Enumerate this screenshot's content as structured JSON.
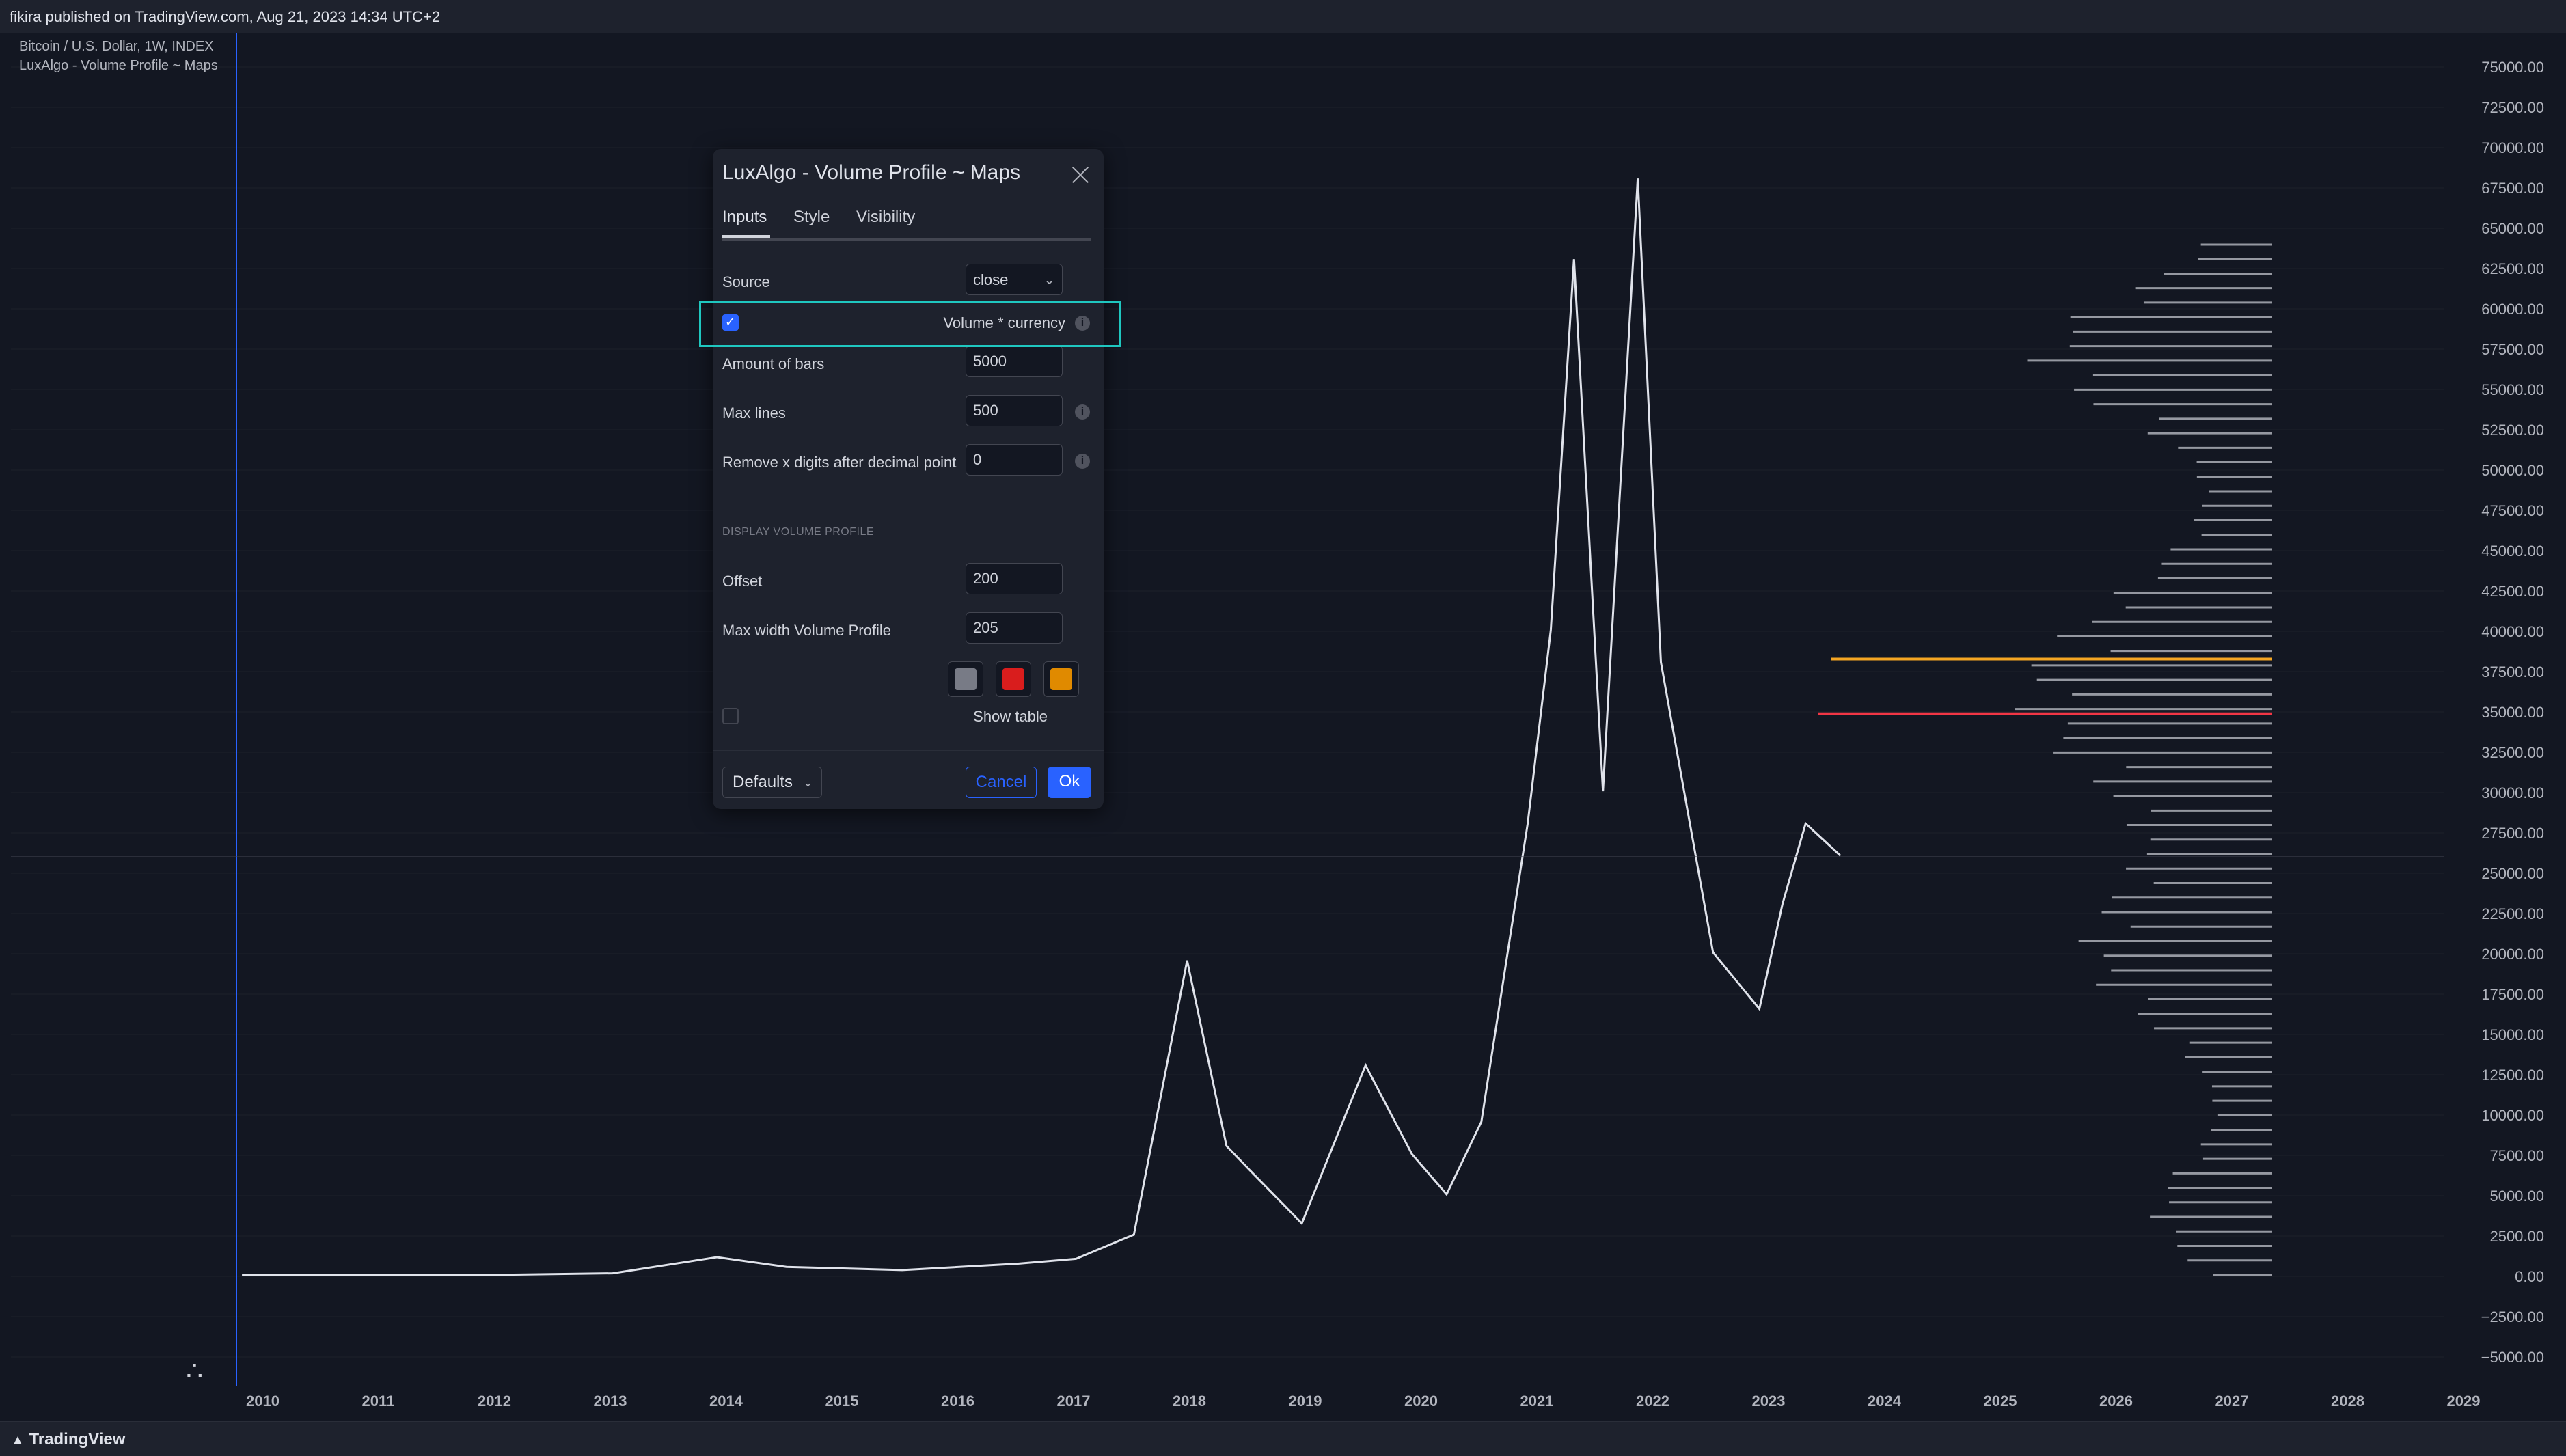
{
  "header": {
    "publish_info": "fikira published on TradingView.com, Aug 21, 2023 14:34 UTC+2"
  },
  "legend": {
    "symbol": "Bitcoin / U.S. Dollar, 1W, INDEX",
    "indicator": "LuxAlgo - Volume Profile ~ Maps"
  },
  "price_axis": [
    "75000.00",
    "72500.00",
    "70000.00",
    "67500.00",
    "65000.00",
    "62500.00",
    "60000.00",
    "57500.00",
    "55000.00",
    "52500.00",
    "50000.00",
    "47500.00",
    "45000.00",
    "42500.00",
    "40000.00",
    "37500.00",
    "35000.00",
    "32500.00",
    "30000.00",
    "27500.00",
    "25000.00",
    "22500.00",
    "20000.00",
    "17500.00",
    "15000.00",
    "12500.00",
    "10000.00",
    "7500.00",
    "5000.00",
    "2500.00",
    "0.00",
    "−2500.00",
    "−5000.00"
  ],
  "time_axis": [
    "2010",
    "2011",
    "2012",
    "2013",
    "2014",
    "2015",
    "2016",
    "2017",
    "2018",
    "2019",
    "2020",
    "2021",
    "2022",
    "2023",
    "2024",
    "2025",
    "2026",
    "2027",
    "2028",
    "2029"
  ],
  "colors": {
    "accent": "#2962ff",
    "highlight": "#1fc7c0",
    "poc_red": "#f23645",
    "orange_line": "#f5a623",
    "profile_gray": "#9598a1"
  },
  "dialog": {
    "title": "LuxAlgo - Volume Profile ~ Maps",
    "tabs": [
      {
        "label": "Inputs"
      },
      {
        "label": "Style"
      },
      {
        "label": "Visibility"
      }
    ],
    "source": {
      "label": "Source",
      "value": "close"
    },
    "volume_currency": {
      "label": "Volume * currency",
      "checked": true
    },
    "amount_of_bars": {
      "label": "Amount of bars",
      "value": "5000"
    },
    "max_lines": {
      "label": "Max lines",
      "value": "500"
    },
    "remove_digits": {
      "label": "Remove x digits after decimal point",
      "value": "0"
    },
    "section_display": "DISPLAY VOLUME PROFILE",
    "offset": {
      "label": "Offset",
      "value": "200"
    },
    "max_width": {
      "label": "Max width Volume Profile",
      "value": "205"
    },
    "swatches": [
      "#787b86",
      "#d91d1d",
      "#e08a00"
    ],
    "show_table": {
      "label": "Show table",
      "checked": false
    },
    "buttons": {
      "defaults": "Defaults",
      "cancel": "Cancel",
      "ok": "Ok"
    }
  },
  "footer": {
    "brand": "TradingView"
  },
  "chart_data": {
    "type": "line",
    "x": [
      2009.8,
      2011.0,
      2012.0,
      2013.0,
      2013.9,
      2014.5,
      2015.5,
      2016.5,
      2017.0,
      2017.5,
      2017.96,
      2018.3,
      2018.5,
      2018.95,
      2019.5,
      2019.9,
      2020.2,
      2020.5,
      2020.9,
      2021.1,
      2021.3,
      2021.55,
      2021.85,
      2022.05,
      2022.5,
      2022.9,
      2023.1,
      2023.3,
      2023.6
    ],
    "values": [
      0,
      5,
      10,
      100,
      1100,
      500,
      300,
      700,
      1000,
      2500,
      19500,
      8000,
      6500,
      3200,
      13000,
      7500,
      5000,
      9500,
      28000,
      40000,
      63000,
      30000,
      68000,
      38000,
      20000,
      16500,
      23000,
      28000,
      26000
    ],
    "xlim": [
      2009.8,
      2029.2
    ],
    "ylim": [
      -5000,
      75000
    ],
    "volume_profile": {
      "poc_price": 34800,
      "secondary_price": 38200
    }
  }
}
